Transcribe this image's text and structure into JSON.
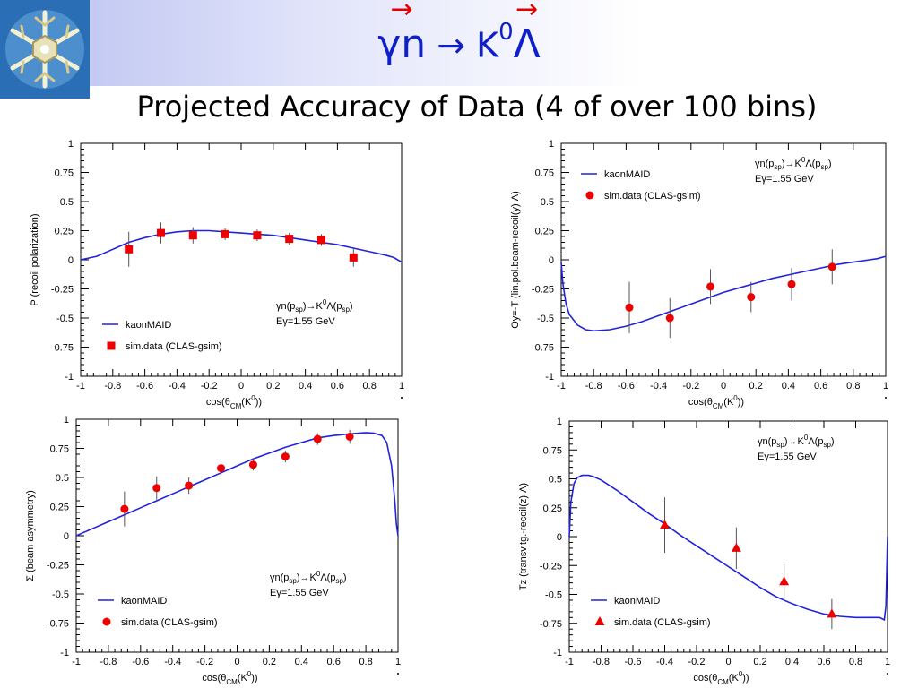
{
  "slide": {
    "title_parts": [
      "γn",
      " → K",
      "0",
      "Λ"
    ],
    "subtitle": "Projected Accuracy of Data (4 of over 100 bins)"
  },
  "legend_common": {
    "curve": "kaonMAID",
    "data": "sim.data (CLAS-gsim)",
    "reaction": "γn(psp)→K0Λ(psp)",
    "energy": "Eγ=1.55 GeV"
  },
  "colors": {
    "theory": "#2222dd",
    "data": "#ee0000",
    "error": "#555555"
  },
  "chart_data": [
    {
      "type": "scatter",
      "ylabel": "P  (recoil polarization)",
      "xlabel": "cos(θCM(K0))",
      "xlim": [
        -1,
        1
      ],
      "ylim": [
        -1,
        1
      ],
      "xticks": [
        "-1",
        "-0.8",
        "-0.6",
        "-0.4",
        "-0.2",
        "0",
        "0.2",
        "0.4",
        "0.6",
        "0.8",
        "1"
      ],
      "yticks": [
        "1",
        "0.75",
        "0.5",
        "0.25",
        "0",
        "-0.25",
        "-0.5",
        "-0.75",
        "-1"
      ],
      "marker": "square",
      "legend_position": "bottom-left",
      "series": [
        {
          "name": "kaonMAID",
          "kind": "curve",
          "x": [
            -1,
            -0.9,
            -0.8,
            -0.7,
            -0.6,
            -0.5,
            -0.4,
            -0.3,
            -0.2,
            -0.1,
            0,
            0.1,
            0.2,
            0.3,
            0.4,
            0.5,
            0.6,
            0.7,
            0.8,
            0.9,
            0.95,
            1
          ],
          "y": [
            0,
            0.03,
            0.09,
            0.15,
            0.19,
            0.22,
            0.24,
            0.25,
            0.25,
            0.24,
            0.23,
            0.22,
            0.21,
            0.19,
            0.17,
            0.15,
            0.13,
            0.1,
            0.07,
            0.04,
            0.02,
            -0.02
          ]
        },
        {
          "name": "sim.data (CLAS-gsim)",
          "kind": "points",
          "x": [
            -0.7,
            -0.5,
            -0.3,
            -0.1,
            0.1,
            0.3,
            0.5,
            0.7
          ],
          "y": [
            0.09,
            0.23,
            0.21,
            0.22,
            0.21,
            0.18,
            0.17,
            0.02
          ],
          "err": [
            0.15,
            0.09,
            0.07,
            0.05,
            0.05,
            0.05,
            0.05,
            0.08
          ]
        }
      ]
    },
    {
      "type": "scatter",
      "ylabel": "Oy=-T  (lin.pol.beam-recoil(y) Λ)",
      "xlabel": "cos(θCM(K0))",
      "xlim": [
        -1,
        1
      ],
      "ylim": [
        -1,
        1
      ],
      "xticks": [
        "-1",
        "-0.8",
        "-0.6",
        "-0.4",
        "-0.2",
        "0",
        "0.2",
        "0.4",
        "0.6",
        "0.8",
        "1"
      ],
      "yticks": [
        "1",
        "0.75",
        "0.5",
        "0.25",
        "0",
        "-0.25",
        "-0.5",
        "-0.75",
        "-1"
      ],
      "marker": "circle",
      "legend_position": "top-left",
      "series": [
        {
          "name": "kaonMAID",
          "kind": "curve",
          "x": [
            -1,
            -0.99,
            -0.97,
            -0.95,
            -0.9,
            -0.85,
            -0.8,
            -0.7,
            -0.6,
            -0.5,
            -0.4,
            -0.3,
            -0.2,
            -0.1,
            0,
            0.1,
            0.2,
            0.3,
            0.4,
            0.5,
            0.6,
            0.7,
            0.8,
            0.9,
            0.95,
            1
          ],
          "y": [
            -0.02,
            -0.2,
            -0.38,
            -0.47,
            -0.56,
            -0.6,
            -0.61,
            -0.6,
            -0.57,
            -0.53,
            -0.48,
            -0.43,
            -0.38,
            -0.33,
            -0.28,
            -0.24,
            -0.2,
            -0.16,
            -0.13,
            -0.1,
            -0.07,
            -0.04,
            -0.02,
            0,
            0.01,
            0.03
          ]
        },
        {
          "name": "sim.data (CLAS-gsim)",
          "kind": "points",
          "x": [
            -0.58,
            -0.33,
            -0.08,
            0.17,
            0.42,
            0.67
          ],
          "y": [
            -0.41,
            -0.5,
            -0.23,
            -0.32,
            -0.21,
            -0.06
          ],
          "err": [
            0.22,
            0.17,
            0.15,
            0.13,
            0.14,
            0.15
          ]
        }
      ]
    },
    {
      "type": "scatter",
      "ylabel": "Σ   (beam asymmetry)",
      "xlabel": "cos(θCM(K0))",
      "xlim": [
        -1,
        1
      ],
      "ylim": [
        -1,
        1
      ],
      "xticks": [
        "-1",
        "-0.8",
        "-0.6",
        "-0.4",
        "-0.2",
        "0",
        "0.2",
        "0.4",
        "0.6",
        "0.8",
        "1"
      ],
      "yticks": [
        "1",
        "0.75",
        "0.5",
        "0.25",
        "0",
        "-0.25",
        "-0.5",
        "-0.75",
        "-1"
      ],
      "marker": "circle",
      "legend_position": "bottom-left",
      "series": [
        {
          "name": "kaonMAID",
          "kind": "curve",
          "x": [
            -1,
            -0.9,
            -0.8,
            -0.7,
            -0.6,
            -0.5,
            -0.4,
            -0.3,
            -0.2,
            -0.1,
            0,
            0.1,
            0.2,
            0.3,
            0.4,
            0.5,
            0.6,
            0.7,
            0.8,
            0.85,
            0.9,
            0.93,
            0.96,
            0.98,
            0.99,
            1
          ],
          "y": [
            0,
            0.06,
            0.12,
            0.18,
            0.24,
            0.3,
            0.36,
            0.42,
            0.48,
            0.54,
            0.6,
            0.66,
            0.71,
            0.76,
            0.8,
            0.84,
            0.86,
            0.875,
            0.885,
            0.88,
            0.86,
            0.8,
            0.6,
            0.3,
            0.1,
            0
          ]
        },
        {
          "name": "sim.data (CLAS-gsim)",
          "kind": "points",
          "x": [
            -0.7,
            -0.5,
            -0.3,
            -0.1,
            0.1,
            0.3,
            0.5,
            0.7
          ],
          "y": [
            0.23,
            0.41,
            0.43,
            0.58,
            0.61,
            0.68,
            0.83,
            0.85
          ],
          "err": [
            0.15,
            0.1,
            0.07,
            0.06,
            0.05,
            0.05,
            0.05,
            0.06
          ]
        }
      ]
    },
    {
      "type": "scatter",
      "ylabel": "Tz   (transv.tg.-recoil(z) Λ)",
      "xlabel": "cos(θCM(K0))",
      "xlim": [
        -1,
        1
      ],
      "ylim": [
        -1,
        1
      ],
      "xticks": [
        "-1",
        "-0.8",
        "-0.6",
        "-0.4",
        "-0.2",
        "0",
        "0.2",
        "0.4",
        "0.6",
        "0.8",
        "1"
      ],
      "yticks": [
        "1",
        "0.75",
        "0.5",
        "0.25",
        "0",
        "-0.25",
        "-0.5",
        "-0.75",
        "-1"
      ],
      "marker": "triangle",
      "legend_position": "bottom-left",
      "series": [
        {
          "name": "kaonMAID",
          "kind": "curve",
          "x": [
            -1,
            -0.99,
            -0.97,
            -0.95,
            -0.92,
            -0.88,
            -0.85,
            -0.8,
            -0.7,
            -0.6,
            -0.5,
            -0.4,
            -0.3,
            -0.2,
            -0.1,
            0,
            0.1,
            0.2,
            0.3,
            0.4,
            0.5,
            0.6,
            0.7,
            0.8,
            0.9,
            0.95,
            0.98,
            0.99,
            1
          ],
          "y": [
            0,
            0.3,
            0.46,
            0.51,
            0.53,
            0.53,
            0.52,
            0.49,
            0.4,
            0.3,
            0.2,
            0.11,
            0.01,
            -0.08,
            -0.17,
            -0.26,
            -0.35,
            -0.44,
            -0.52,
            -0.58,
            -0.63,
            -0.67,
            -0.69,
            -0.7,
            -0.7,
            -0.7,
            -0.72,
            -0.6,
            0
          ]
        },
        {
          "name": "sim.data (CLAS-gsim)",
          "kind": "points",
          "x": [
            -0.4,
            0.05,
            0.35,
            0.65
          ],
          "y": [
            0.1,
            -0.1,
            -0.39,
            -0.67
          ],
          "err": [
            0.24,
            0.18,
            0.15,
            0.13
          ]
        }
      ]
    }
  ]
}
